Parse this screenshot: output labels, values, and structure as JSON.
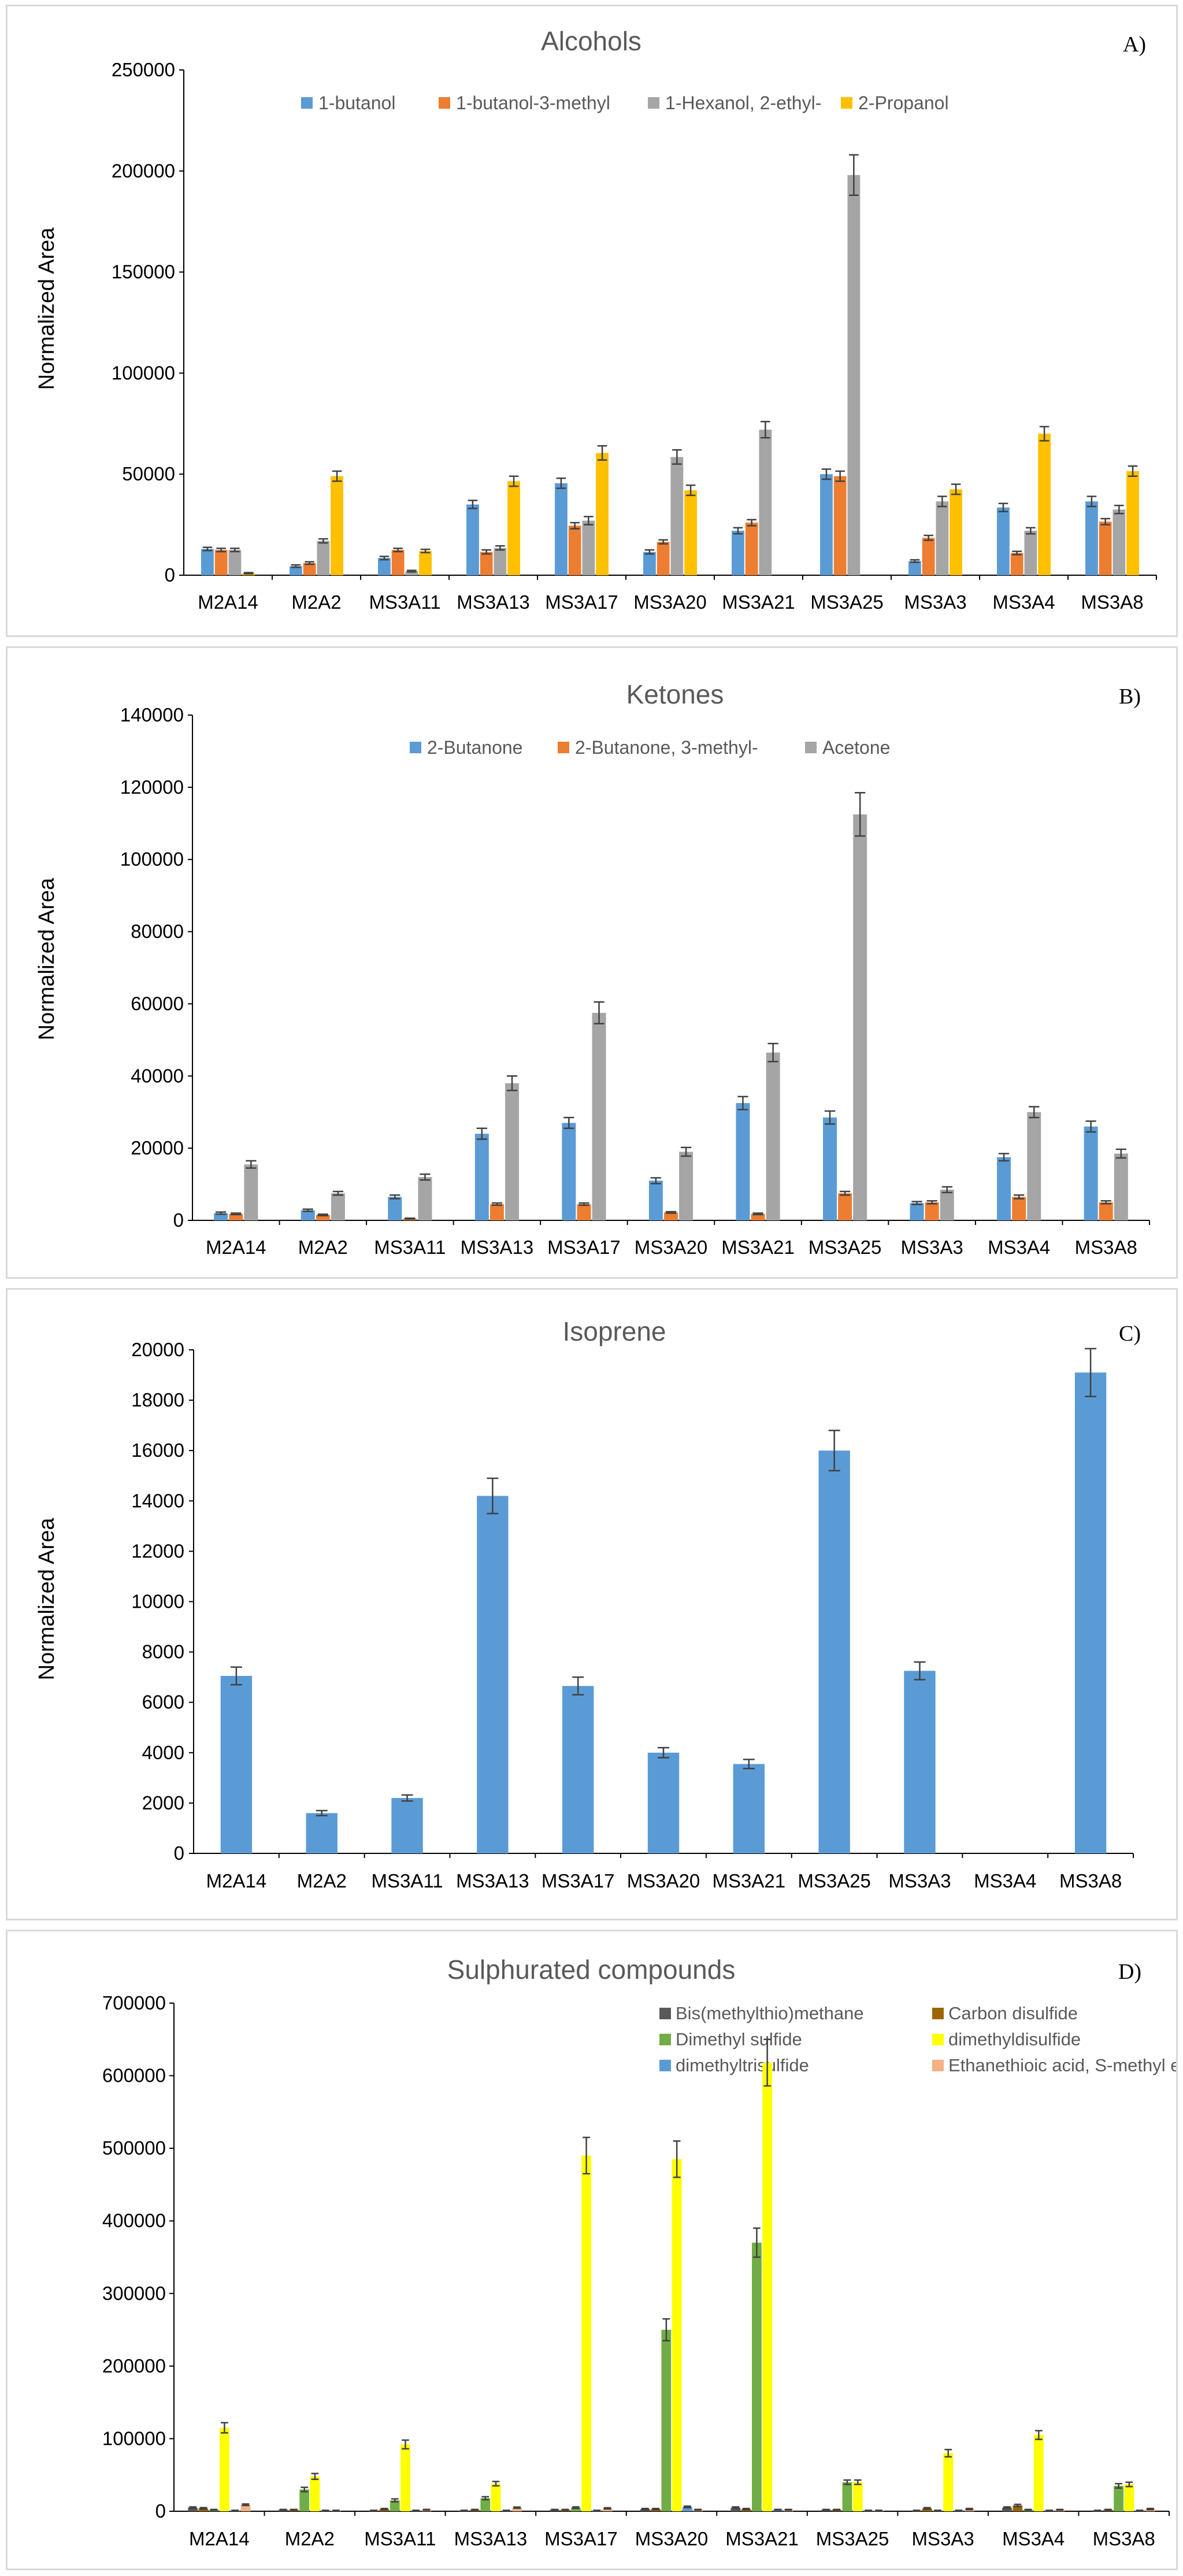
{
  "chart_data": [
    {
      "id": "A",
      "type": "bar",
      "panel_label": "A)",
      "title": "Alcohols",
      "xlabel": "",
      "ylabel": "Normalized Area",
      "ylim": [
        0,
        250000
      ],
      "yticks": [
        0,
        50000,
        100000,
        150000,
        200000,
        250000
      ],
      "ytick_labels": [
        "0",
        "50000",
        "100000",
        "150000",
        "200000",
        "250000"
      ],
      "legend_position": "top",
      "categories": [
        "M2A14",
        "M2A2",
        "MS3A11",
        "MS3A13",
        "MS3A17",
        "MS3A20",
        "MS3A21",
        "MS3A25",
        "MS3A3",
        "MS3A4",
        "MS3A8"
      ],
      "series": [
        {
          "name": "1-butanol",
          "color": "#5b9bd5",
          "values": [
            13000,
            4500,
            8500,
            35000,
            45500,
            11500,
            22000,
            50000,
            7000,
            33500,
            36500
          ],
          "errors": [
            800,
            600,
            800,
            2000,
            2500,
            1000,
            1500,
            2500,
            600,
            2000,
            2500
          ]
        },
        {
          "name": "1-butanol-3-methyl",
          "color": "#ed7d31",
          "values": [
            12500,
            6000,
            12500,
            11500,
            24500,
            16500,
            26000,
            49000,
            18500,
            11000,
            26500
          ],
          "errors": [
            800,
            600,
            800,
            1000,
            1500,
            1000,
            1500,
            2500,
            1200,
            800,
            1500
          ]
        },
        {
          "name": "1-Hexanol, 2-ethyl-",
          "color": "#a5a5a5",
          "values": [
            12500,
            17000,
            2000,
            13500,
            27000,
            58500,
            72000,
            198000,
            36500,
            22000,
            32500
          ],
          "errors": [
            800,
            1000,
            400,
            1000,
            2000,
            3500,
            4000,
            10000,
            2500,
            1500,
            2000
          ]
        },
        {
          "name": "2-Propanol",
          "color": "#ffc000",
          "values": [
            1000,
            49000,
            12000,
            46500,
            60500,
            42000,
            0,
            0,
            42500,
            70000,
            51500
          ],
          "errors": [
            300,
            2500,
            800,
            2500,
            3500,
            2500,
            0,
            0,
            2500,
            3500,
            2500
          ]
        }
      ]
    },
    {
      "id": "B",
      "type": "bar",
      "panel_label": "B)",
      "title": "Ketones",
      "xlabel": "",
      "ylabel": "Normalized Area",
      "ylim": [
        0,
        140000
      ],
      "yticks": [
        0,
        20000,
        40000,
        60000,
        80000,
        100000,
        120000,
        140000
      ],
      "ytick_labels": [
        "0",
        "20000",
        "40000",
        "60000",
        "80000",
        "100000",
        "120000",
        "140000"
      ],
      "legend_position": "top",
      "categories": [
        "M2A14",
        "M2A2",
        "MS3A11",
        "MS3A13",
        "MS3A17",
        "MS3A20",
        "MS3A21",
        "MS3A25",
        "MS3A3",
        "MS3A4",
        "MS3A8"
      ],
      "series": [
        {
          "name": "2-Butanone",
          "color": "#5b9bd5",
          "values": [
            2000,
            2800,
            6500,
            24000,
            27000,
            11000,
            32500,
            28500,
            4800,
            17500,
            26000
          ],
          "errors": [
            300,
            300,
            500,
            1500,
            1500,
            800,
            1800,
            1800,
            400,
            1000,
            1500
          ]
        },
        {
          "name": "2-Butanone, 3-methyl-",
          "color": "#ed7d31",
          "values": [
            1800,
            1500,
            500,
            4500,
            4500,
            2200,
            1800,
            7500,
            5000,
            6500,
            5000
          ],
          "errors": [
            200,
            200,
            100,
            300,
            300,
            200,
            200,
            500,
            400,
            500,
            400
          ]
        },
        {
          "name": "Acetone",
          "color": "#a5a5a5",
          "values": [
            15500,
            7500,
            12000,
            38000,
            57500,
            19000,
            46500,
            112500,
            8500,
            30000,
            18500
          ],
          "errors": [
            1000,
            500,
            800,
            2000,
            3000,
            1200,
            2500,
            6000,
            800,
            1500,
            1200
          ]
        }
      ]
    },
    {
      "id": "C",
      "type": "bar",
      "panel_label": "C)",
      "title": "Isoprene",
      "xlabel": "",
      "ylabel": "Normalized Area",
      "ylim": [
        0,
        20000
      ],
      "yticks": [
        0,
        2000,
        4000,
        6000,
        8000,
        10000,
        12000,
        14000,
        16000,
        18000,
        20000
      ],
      "ytick_labels": [
        "0",
        "2000",
        "4000",
        "6000",
        "8000",
        "10000",
        "12000",
        "14000",
        "16000",
        "18000",
        "20000"
      ],
      "legend_position": "none",
      "categories": [
        "M2A14",
        "M2A2",
        "MS3A11",
        "MS3A13",
        "MS3A17",
        "MS3A20",
        "MS3A21",
        "MS3A25",
        "MS3A3",
        "MS3A4",
        "MS3A8"
      ],
      "series": [
        {
          "name": "Isoprene",
          "color": "#5b9bd5",
          "values": [
            7050,
            1600,
            2200,
            14200,
            6650,
            4000,
            3550,
            16000,
            7250,
            0,
            19100
          ],
          "errors": [
            350,
            100,
            120,
            700,
            350,
            200,
            180,
            800,
            350,
            0,
            950
          ]
        }
      ]
    },
    {
      "id": "D",
      "type": "bar",
      "panel_label": "D)",
      "title": "Sulphurated compounds",
      "xlabel": "",
      "ylabel": "",
      "ylim": [
        0,
        700000
      ],
      "yticks": [
        0,
        100000,
        200000,
        300000,
        400000,
        500000,
        600000,
        700000
      ],
      "ytick_labels": [
        "0",
        "100000",
        "200000",
        "300000",
        "400000",
        "500000",
        "600000",
        "700000"
      ],
      "legend_position": "top-right",
      "categories": [
        "M2A14",
        "M2A2",
        "MS3A11",
        "MS3A13",
        "MS3A17",
        "MS3A20",
        "MS3A21",
        "MS3A25",
        "MS3A3",
        "MS3A4",
        "MS3A8"
      ],
      "series": [
        {
          "name": "Bis(methylthio)methane",
          "color": "#595959",
          "values": [
            5000,
            2000,
            1000,
            1000,
            2000,
            3000,
            5000,
            2000,
            1000,
            5000,
            1000
          ],
          "errors": [
            1000,
            500,
            300,
            300,
            500,
            800,
            1000,
            500,
            300,
            1000,
            300
          ]
        },
        {
          "name": "Carbon disulfide",
          "color": "#9c6500",
          "values": [
            4000,
            2000,
            3000,
            2000,
            2000,
            3000,
            3000,
            2000,
            4000,
            8000,
            2000
          ],
          "errors": [
            1000,
            500,
            800,
            500,
            500,
            800,
            800,
            500,
            1000,
            1500,
            500
          ]
        },
        {
          "name": "Dimethyl sulfide",
          "color": "#70ad47",
          "values": [
            2000,
            30000,
            15000,
            18000,
            5000,
            250000,
            370000,
            40000,
            1000,
            2000,
            35000
          ],
          "errors": [
            500,
            3000,
            2000,
            2000,
            1000,
            15000,
            20000,
            3000,
            300,
            500,
            3000
          ]
        },
        {
          "name": "dimethyldisulfide",
          "color": "#ffff00",
          "values": [
            115000,
            48000,
            92000,
            38000,
            490000,
            485000,
            618000,
            40000,
            80000,
            105000,
            37000
          ],
          "errors": [
            7000,
            4000,
            6000,
            3000,
            25000,
            25000,
            32000,
            3000,
            5000,
            6000,
            3000
          ]
        },
        {
          "name": "dimethyltrisulfide",
          "color": "#5b9bd5",
          "values": [
            1000,
            1000,
            1000,
            1000,
            1000,
            6000,
            2000,
            1000,
            1000,
            1000,
            1000
          ],
          "errors": [
            300,
            300,
            300,
            300,
            300,
            1000,
            500,
            300,
            300,
            300,
            300
          ]
        },
        {
          "name": "Ethanethioic acid, S-methyl ester",
          "color": "#f4b183",
          "values": [
            9000,
            1000,
            2000,
            5000,
            4000,
            2000,
            2000,
            1000,
            3000,
            2000,
            3000
          ],
          "errors": [
            1000,
            300,
            500,
            800,
            800,
            500,
            500,
            300,
            800,
            500,
            800
          ]
        }
      ]
    }
  ]
}
